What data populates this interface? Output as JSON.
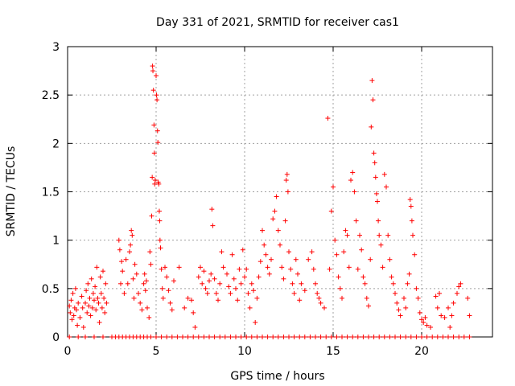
{
  "chart_data": {
    "type": "scatter",
    "title": "Day 331 of 2021, SRMTID for receiver cas1",
    "xlabel": "GPS time / hours",
    "ylabel": "SRMTID / TECUs",
    "xlim": [
      0,
      24
    ],
    "ylim": [
      0,
      3
    ],
    "xticks": [
      "0",
      "5",
      "10",
      "15",
      "20"
    ],
    "yticks": [
      "0",
      "0.5",
      "1",
      "1.5",
      "2",
      "2.5",
      "3"
    ],
    "grid": true,
    "marker": "+",
    "color": "#ff0000",
    "series": [
      {
        "name": "SRMTID",
        "points": [
          [
            0.1,
            0.32
          ],
          [
            0.15,
            0.25
          ],
          [
            0.2,
            0.38
          ],
          [
            0.25,
            0.18
          ],
          [
            0.3,
            0.45
          ],
          [
            0.35,
            0.22
          ],
          [
            0.4,
            0.3
          ],
          [
            0.45,
            0.5
          ],
          [
            0.5,
            0.28
          ],
          [
            0.55,
            0.12
          ],
          [
            0.6,
            0.35
          ],
          [
            0.7,
            0.2
          ],
          [
            0.8,
            0.42
          ],
          [
            0.85,
            0.3
          ],
          [
            0.9,
            0.1
          ],
          [
            1.0,
            0.35
          ],
          [
            1.05,
            0.48
          ],
          [
            1.1,
            0.25
          ],
          [
            1.15,
            0.55
          ],
          [
            1.2,
            0.32
          ],
          [
            1.25,
            0.4
          ],
          [
            1.3,
            0.22
          ],
          [
            1.35,
            0.6
          ],
          [
            1.4,
            0.3
          ],
          [
            1.45,
            0.45
          ],
          [
            1.5,
            0.38
          ],
          [
            1.55,
            0.52
          ],
          [
            1.6,
            0.28
          ],
          [
            1.65,
            0.72
          ],
          [
            1.7,
            0.4
          ],
          [
            1.75,
            0.35
          ],
          [
            1.8,
            0.15
          ],
          [
            1.85,
            0.62
          ],
          [
            1.9,
            0.45
          ],
          [
            1.95,
            0.3
          ],
          [
            2.0,
            0.68
          ],
          [
            2.05,
            0.4
          ],
          [
            2.1,
            0.25
          ],
          [
            2.15,
            0.55
          ],
          [
            2.2,
            0.35
          ],
          [
            2.9,
            1.0
          ],
          [
            2.95,
            0.9
          ],
          [
            3.0,
            0.55
          ],
          [
            3.05,
            0.78
          ],
          [
            3.1,
            0.68
          ],
          [
            3.2,
            0.45
          ],
          [
            3.3,
            0.8
          ],
          [
            3.4,
            0.55
          ],
          [
            3.5,
            0.88
          ],
          [
            3.55,
            0.95
          ],
          [
            3.6,
            1.1
          ],
          [
            3.65,
            1.05
          ],
          [
            3.7,
            0.6
          ],
          [
            3.75,
            0.4
          ],
          [
            3.8,
            0.75
          ],
          [
            3.9,
            0.65
          ],
          [
            4.0,
            0.45
          ],
          [
            4.1,
            0.35
          ],
          [
            4.2,
            0.28
          ],
          [
            4.3,
            0.55
          ],
          [
            4.35,
            0.65
          ],
          [
            4.4,
            0.48
          ],
          [
            4.45,
            0.58
          ],
          [
            4.5,
            0.3
          ],
          [
            4.6,
            0.2
          ],
          [
            4.65,
            0.88
          ],
          [
            4.7,
            0.75
          ],
          [
            4.75,
            1.25
          ],
          [
            4.78,
            1.65
          ],
          [
            4.8,
            2.8
          ],
          [
            4.82,
            2.75
          ],
          [
            4.85,
            2.55
          ],
          [
            4.88,
            2.19
          ],
          [
            4.9,
            1.9
          ],
          [
            4.92,
            1.58
          ],
          [
            4.95,
            1.62
          ],
          [
            5.0,
            2.7
          ],
          [
            5.02,
            2.5
          ],
          [
            5.05,
            2.45
          ],
          [
            5.08,
            2.13
          ],
          [
            5.1,
            2.01
          ],
          [
            5.12,
            1.6
          ],
          [
            5.15,
            1.58
          ],
          [
            5.18,
            1.3
          ],
          [
            5.2,
            1.2
          ],
          [
            5.22,
            1.0
          ],
          [
            5.25,
            0.92
          ],
          [
            5.3,
            0.7
          ],
          [
            5.35,
            0.5
          ],
          [
            5.4,
            0.4
          ],
          [
            5.5,
            0.72
          ],
          [
            5.6,
            0.62
          ],
          [
            5.7,
            0.48
          ],
          [
            5.8,
            0.35
          ],
          [
            5.9,
            0.28
          ],
          [
            6.0,
            0.58
          ],
          [
            6.3,
            0.72
          ],
          [
            6.6,
            0.3
          ],
          [
            6.8,
            0.4
          ],
          [
            7.0,
            0.38
          ],
          [
            7.1,
            0.25
          ],
          [
            7.2,
            0.1
          ],
          [
            7.4,
            0.62
          ],
          [
            7.5,
            0.72
          ],
          [
            7.6,
            0.55
          ],
          [
            7.7,
            0.68
          ],
          [
            7.8,
            0.5
          ],
          [
            7.9,
            0.45
          ],
          [
            8.0,
            0.58
          ],
          [
            8.1,
            0.65
          ],
          [
            8.15,
            1.32
          ],
          [
            8.2,
            1.15
          ],
          [
            8.3,
            0.6
          ],
          [
            8.4,
            0.45
          ],
          [
            8.5,
            0.38
          ],
          [
            8.6,
            0.55
          ],
          [
            8.7,
            0.88
          ],
          [
            8.8,
            0.72
          ],
          [
            9.0,
            0.65
          ],
          [
            9.1,
            0.52
          ],
          [
            9.2,
            0.45
          ],
          [
            9.3,
            0.85
          ],
          [
            9.4,
            0.6
          ],
          [
            9.5,
            0.5
          ],
          [
            9.6,
            0.38
          ],
          [
            9.7,
            0.7
          ],
          [
            9.8,
            0.55
          ],
          [
            9.9,
            0.9
          ],
          [
            10.0,
            0.62
          ],
          [
            10.1,
            0.7
          ],
          [
            10.2,
            0.45
          ],
          [
            10.3,
            0.3
          ],
          [
            10.4,
            0.55
          ],
          [
            10.5,
            0.48
          ],
          [
            10.6,
            0.15
          ],
          [
            10.7,
            0.4
          ],
          [
            10.8,
            0.62
          ],
          [
            10.9,
            0.78
          ],
          [
            11.0,
            1.1
          ],
          [
            11.1,
            0.95
          ],
          [
            11.2,
            0.85
          ],
          [
            11.3,
            0.72
          ],
          [
            11.4,
            0.65
          ],
          [
            11.5,
            0.8
          ],
          [
            11.6,
            1.22
          ],
          [
            11.7,
            1.3
          ],
          [
            11.8,
            1.45
          ],
          [
            11.9,
            1.1
          ],
          [
            12.0,
            0.95
          ],
          [
            12.1,
            0.72
          ],
          [
            12.2,
            0.6
          ],
          [
            12.3,
            1.2
          ],
          [
            12.35,
            1.62
          ],
          [
            12.4,
            1.68
          ],
          [
            12.45,
            1.5
          ],
          [
            12.5,
            0.88
          ],
          [
            12.6,
            0.7
          ],
          [
            12.7,
            0.55
          ],
          [
            12.8,
            0.45
          ],
          [
            12.9,
            0.8
          ],
          [
            13.0,
            0.65
          ],
          [
            13.1,
            0.38
          ],
          [
            13.2,
            0.55
          ],
          [
            13.4,
            0.48
          ],
          [
            13.6,
            0.8
          ],
          [
            13.8,
            0.88
          ],
          [
            13.9,
            0.7
          ],
          [
            14.0,
            0.55
          ],
          [
            14.1,
            0.45
          ],
          [
            14.2,
            0.4
          ],
          [
            14.3,
            0.35
          ],
          [
            14.5,
            0.3
          ],
          [
            14.7,
            2.26
          ],
          [
            14.8,
            0.7
          ],
          [
            14.9,
            1.3
          ],
          [
            15.0,
            1.55
          ],
          [
            15.1,
            1.0
          ],
          [
            15.2,
            0.85
          ],
          [
            15.3,
            0.62
          ],
          [
            15.4,
            0.5
          ],
          [
            15.5,
            0.4
          ],
          [
            15.6,
            0.88
          ],
          [
            15.7,
            1.1
          ],
          [
            15.8,
            1.05
          ],
          [
            15.9,
            0.72
          ],
          [
            16.0,
            1.62
          ],
          [
            16.1,
            1.7
          ],
          [
            16.2,
            1.5
          ],
          [
            16.3,
            1.2
          ],
          [
            16.4,
            0.7
          ],
          [
            16.5,
            1.05
          ],
          [
            16.6,
            0.9
          ],
          [
            16.7,
            0.62
          ],
          [
            16.8,
            0.55
          ],
          [
            16.9,
            0.4
          ],
          [
            17.0,
            0.32
          ],
          [
            17.1,
            0.8
          ],
          [
            17.15,
            2.17
          ],
          [
            17.2,
            2.65
          ],
          [
            17.25,
            2.45
          ],
          [
            17.3,
            1.9
          ],
          [
            17.35,
            1.8
          ],
          [
            17.4,
            1.65
          ],
          [
            17.45,
            1.48
          ],
          [
            17.5,
            1.4
          ],
          [
            17.55,
            1.2
          ],
          [
            17.6,
            1.05
          ],
          [
            17.7,
            0.95
          ],
          [
            17.8,
            0.72
          ],
          [
            17.9,
            1.68
          ],
          [
            18.0,
            1.55
          ],
          [
            18.1,
            1.05
          ],
          [
            18.2,
            0.8
          ],
          [
            18.3,
            0.62
          ],
          [
            18.4,
            0.55
          ],
          [
            18.5,
            0.45
          ],
          [
            18.6,
            0.35
          ],
          [
            18.7,
            0.28
          ],
          [
            18.8,
            0.22
          ],
          [
            19.0,
            0.4
          ],
          [
            19.1,
            0.3
          ],
          [
            19.2,
            0.55
          ],
          [
            19.3,
            0.65
          ],
          [
            19.35,
            1.42
          ],
          [
            19.4,
            1.35
          ],
          [
            19.45,
            1.2
          ],
          [
            19.5,
            1.05
          ],
          [
            19.6,
            0.85
          ],
          [
            19.7,
            0.5
          ],
          [
            19.8,
            0.4
          ],
          [
            19.9,
            0.25
          ],
          [
            20.0,
            0.18
          ],
          [
            20.1,
            0.15
          ],
          [
            20.2,
            0.2
          ],
          [
            20.3,
            0.12
          ],
          [
            20.5,
            0.1
          ],
          [
            20.8,
            0.42
          ],
          [
            20.9,
            0.3
          ],
          [
            21.0,
            0.45
          ],
          [
            21.1,
            0.22
          ],
          [
            21.3,
            0.2
          ],
          [
            21.5,
            0.3
          ],
          [
            21.6,
            0.1
          ],
          [
            21.7,
            0.22
          ],
          [
            21.8,
            0.35
          ],
          [
            22.0,
            0.45
          ],
          [
            22.1,
            0.52
          ],
          [
            22.2,
            0.55
          ],
          [
            22.6,
            0.4
          ],
          [
            22.7,
            0.22
          ]
        ],
        "baseline_points_x": [
          0.1,
          0.6,
          1.0,
          1.5,
          2.0,
          2.5,
          2.7,
          2.9,
          3.1,
          3.3,
          3.5,
          3.7,
          3.9,
          4.1,
          4.3,
          4.5,
          4.7,
          5.0,
          5.3,
          5.6,
          5.9,
          6.2,
          6.5,
          6.8,
          7.1,
          7.4,
          7.7,
          8.0,
          8.3,
          8.6,
          8.9,
          9.2,
          9.5,
          9.8,
          10.1,
          10.4,
          10.7,
          11.0,
          11.3,
          11.6,
          11.9,
          12.2,
          12.5,
          12.8,
          13.1,
          13.4,
          13.7,
          14.0,
          14.3,
          14.6,
          14.9,
          15.2,
          15.5,
          15.8,
          16.1,
          16.4,
          16.7,
          17.0,
          17.3,
          17.6,
          17.9,
          18.2,
          18.5,
          18.8,
          19.1,
          19.4,
          19.7,
          20.0,
          20.3,
          20.6,
          20.9,
          21.2,
          21.5,
          21.8,
          22.1,
          22.4,
          22.7
        ]
      }
    ]
  }
}
